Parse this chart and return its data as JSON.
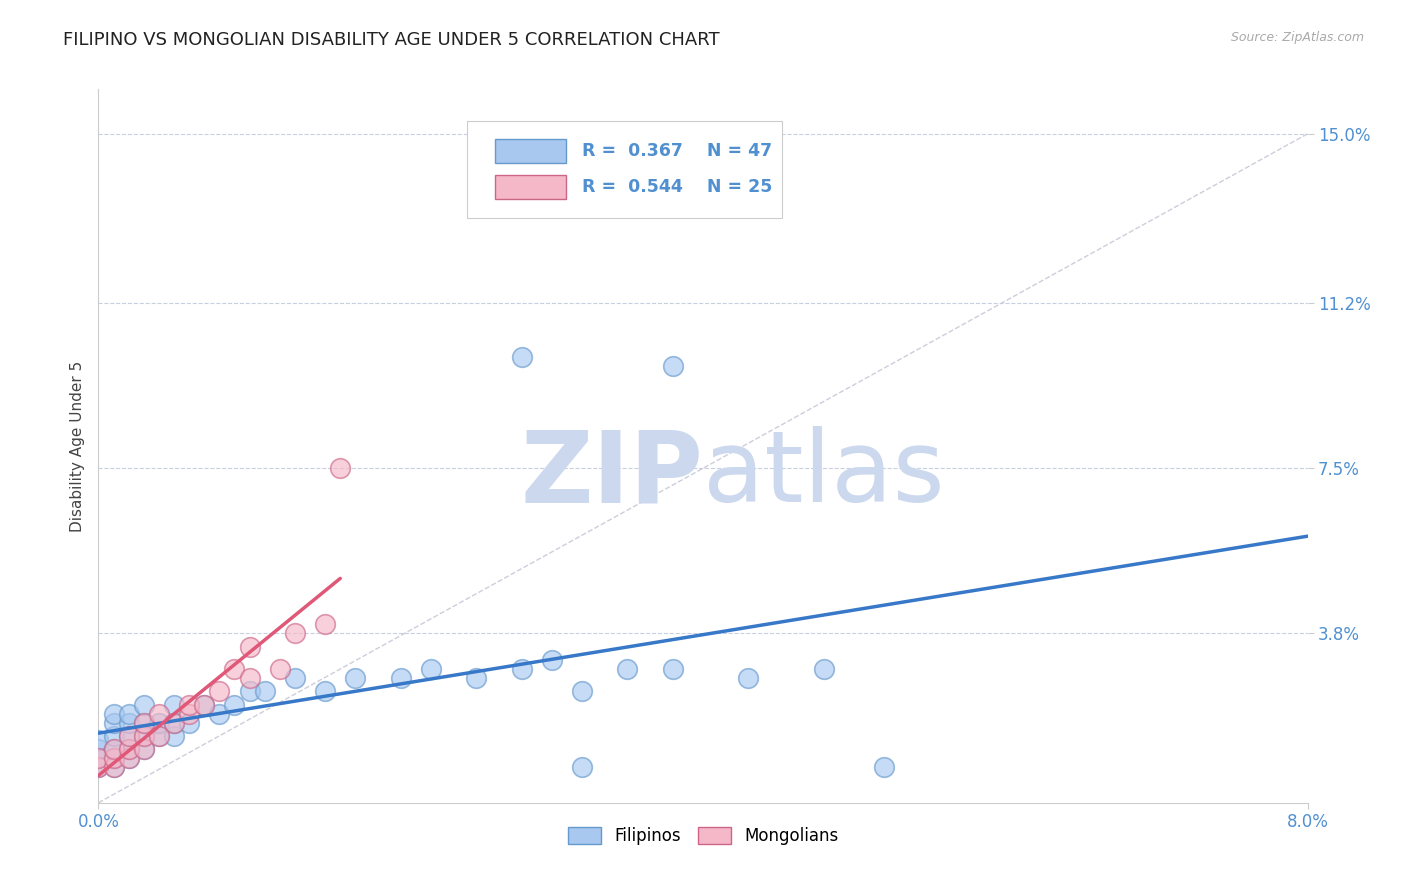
{
  "title": "FILIPINO VS MONGOLIAN DISABILITY AGE UNDER 5 CORRELATION CHART",
  "source_text": "Source: ZipAtlas.com",
  "ylabel": "Disability Age Under 5",
  "xlim": [
    0.0,
    0.08
  ],
  "ylim": [
    0.0,
    0.16
  ],
  "yticks": [
    0.038,
    0.075,
    0.112,
    0.15
  ],
  "ytick_labels": [
    "3.8%",
    "7.5%",
    "11.2%",
    "15.0%"
  ],
  "legend_r_filipino": "0.367",
  "legend_n_filipino": "47",
  "legend_r_mongolian": "0.544",
  "legend_n_mongolian": "25",
  "filipino_color": "#a8c8f0",
  "filipino_edge_color": "#6699cc",
  "mongolian_color": "#f5b8c8",
  "mongolian_edge_color": "#cc6688",
  "filipino_line_color": "#3878c8",
  "mongolian_line_color": "#e05878",
  "ref_line_color": "#c8c8d8",
  "watermark_zip_color": "#c8d8ec",
  "watermark_atlas_color": "#b8cce0",
  "background_color": "#ffffff",
  "title_fontsize": 13,
  "axis_label_fontsize": 11,
  "tick_label_color": "#5090d0",
  "grid_color": "#c8d0e0",
  "filipino_x": [
    0.0,
    0.0,
    0.0,
    0.0,
    0.001,
    0.001,
    0.001,
    0.001,
    0.001,
    0.001,
    0.002,
    0.002,
    0.002,
    0.002,
    0.002,
    0.003,
    0.003,
    0.003,
    0.003,
    0.004,
    0.004,
    0.005,
    0.005,
    0.005,
    0.006,
    0.007,
    0.008,
    0.009,
    0.01,
    0.011,
    0.013,
    0.015,
    0.017,
    0.02,
    0.022,
    0.025,
    0.028,
    0.03,
    0.032,
    0.035,
    0.038,
    0.043,
    0.048,
    0.032,
    0.052,
    0.038,
    0.028
  ],
  "filipino_y": [
    0.008,
    0.01,
    0.012,
    0.014,
    0.008,
    0.01,
    0.012,
    0.015,
    0.018,
    0.02,
    0.01,
    0.012,
    0.015,
    0.018,
    0.02,
    0.012,
    0.015,
    0.018,
    0.022,
    0.015,
    0.018,
    0.015,
    0.018,
    0.022,
    0.018,
    0.022,
    0.02,
    0.022,
    0.025,
    0.025,
    0.028,
    0.025,
    0.028,
    0.028,
    0.03,
    0.028,
    0.03,
    0.032,
    0.025,
    0.03,
    0.03,
    0.028,
    0.03,
    0.008,
    0.008,
    0.098,
    0.1
  ],
  "mongolian_x": [
    0.0,
    0.0,
    0.001,
    0.001,
    0.001,
    0.002,
    0.002,
    0.002,
    0.003,
    0.003,
    0.003,
    0.004,
    0.004,
    0.005,
    0.006,
    0.006,
    0.007,
    0.008,
    0.009,
    0.01,
    0.01,
    0.012,
    0.013,
    0.015,
    0.016
  ],
  "mongolian_y": [
    0.008,
    0.01,
    0.008,
    0.01,
    0.012,
    0.01,
    0.012,
    0.015,
    0.012,
    0.015,
    0.018,
    0.015,
    0.02,
    0.018,
    0.02,
    0.022,
    0.022,
    0.025,
    0.03,
    0.028,
    0.035,
    0.03,
    0.038,
    0.04,
    0.075
  ]
}
